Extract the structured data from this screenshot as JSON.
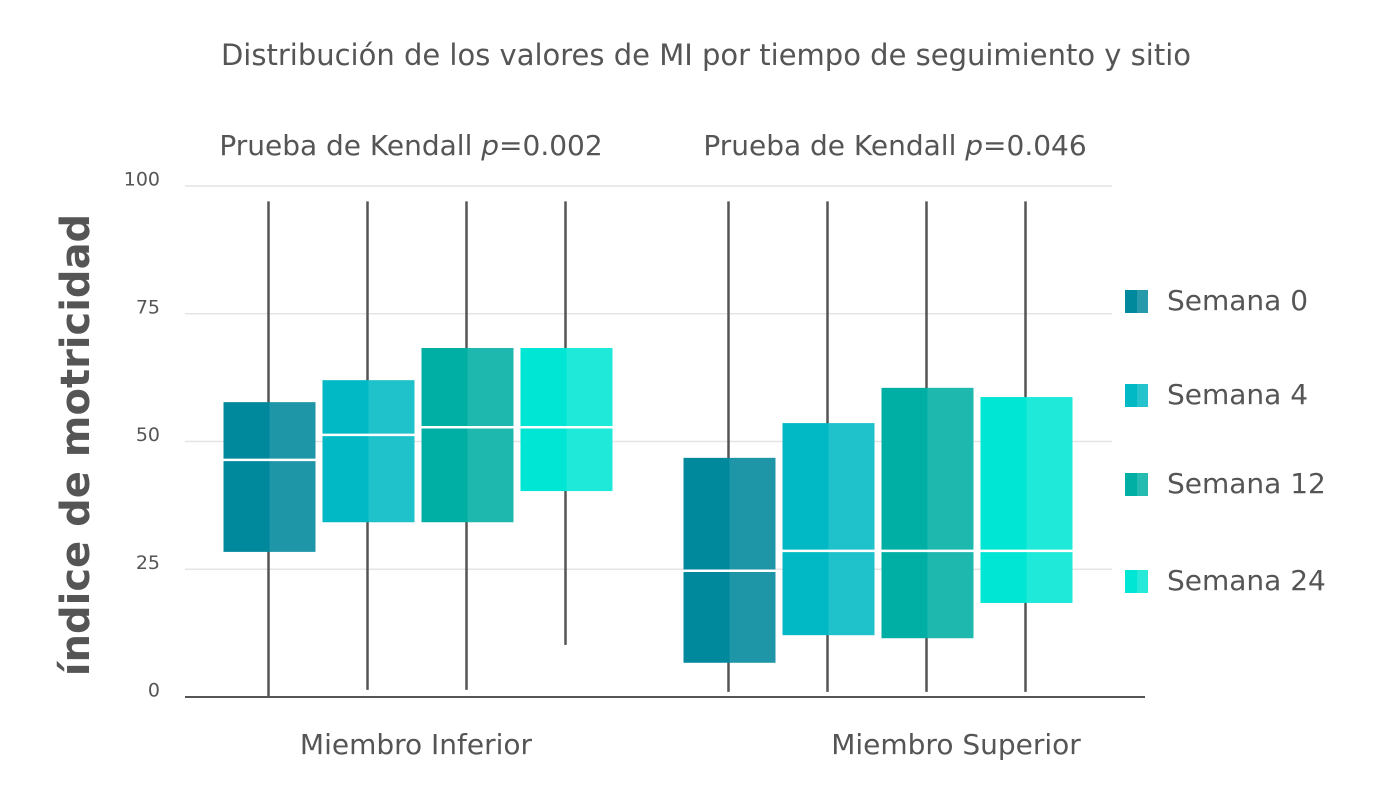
{
  "chart_data": {
    "type": "box",
    "title": "Distribución de los valores de MI por tiempo de seguimiento y sitio",
    "annotations": [
      {
        "text": "Prueba de Kendall ",
        "symbol": "p",
        "value": "=0.002"
      },
      {
        "text": "Prueba de Kendall ",
        "symbol": "p",
        "value": "=0.046"
      }
    ],
    "y_label": "índice de motricidad",
    "categories": [
      "Miembro Inferior",
      "Miembro Superior"
    ],
    "ylim": [
      0,
      100
    ],
    "yticks": [
      0,
      25,
      50,
      75,
      100
    ],
    "grid": true,
    "legend": "right",
    "series": [
      {
        "name": "Semana 0",
        "color": "#00889c",
        "min": [
          0,
          1
        ],
        "q1": [
          28.4,
          6.7
        ],
        "median": [
          46.4,
          24.7
        ],
        "q3": [
          57.7,
          46.8
        ],
        "max": [
          97,
          97
        ]
      },
      {
        "name": "Semana 4",
        "color": "#00b9c4",
        "min": [
          1.4,
          1
        ],
        "q1": [
          34.2,
          12.1
        ],
        "median": [
          51.3,
          28.6
        ],
        "q3": [
          62,
          53.6
        ],
        "max": [
          97,
          97
        ]
      },
      {
        "name": "Semana 12",
        "color": "#00afa4",
        "min": [
          1.4,
          1
        ],
        "q1": [
          34.2,
          11.5
        ],
        "median": [
          52.8,
          28.6
        ],
        "q3": [
          68.3,
          60.5
        ],
        "max": [
          97,
          97
        ]
      },
      {
        "name": "Semana 24",
        "color": "#00e6d4",
        "min": [
          10.2,
          1
        ],
        "q1": [
          40.3,
          18.4
        ],
        "median": [
          52.8,
          28.6
        ],
        "q3": [
          68.3,
          58.7
        ],
        "max": [
          97,
          97
        ]
      }
    ]
  }
}
